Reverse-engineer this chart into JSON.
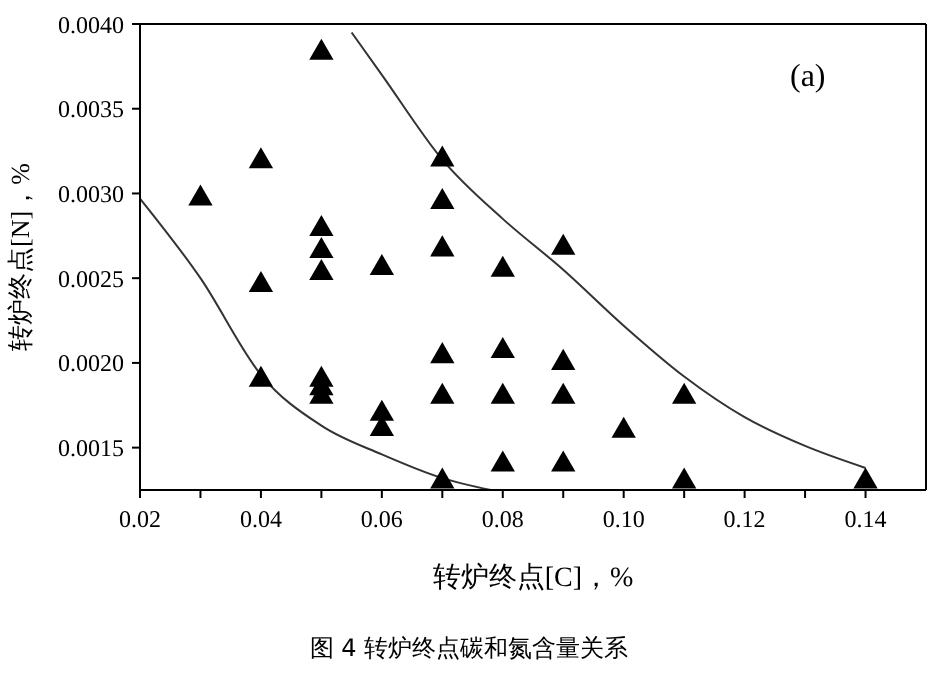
{
  "chart_data": {
    "type": "scatter",
    "xlabel": "转炉终点[C]，%",
    "ylabel": "转炉终点[N]，%",
    "annotations": [
      "(a)",
      "图 4 转炉终点碳和氮含量关系"
    ],
    "xlim": [
      0.02,
      0.15
    ],
    "ylim": [
      0.00125,
      0.004
    ],
    "xticks": [
      0.02,
      {
        "value": 0.03,
        "label": null
      },
      0.04,
      {
        "value": 0.05,
        "label": null
      },
      0.06,
      {
        "value": 0.07,
        "label": null
      },
      0.08,
      {
        "value": 0.09,
        "label": null
      },
      {
        "value": 0.1,
        "label": "0.10"
      },
      {
        "value": 0.11,
        "label": null
      },
      0.12,
      {
        "value": 0.13,
        "label": null
      },
      0.14
    ],
    "yticks": [
      0.0015,
      {
        "value": 0.002,
        "label": "0.0020"
      },
      0.0025,
      {
        "value": 0.003,
        "label": "0.0030"
      },
      0.0035,
      {
        "value": 0.004,
        "label": "0.0040"
      }
    ],
    "grid": false,
    "legend": false,
    "marker": "triangle",
    "series": [
      {
        "color": "#000000",
        "x": [
          0.03,
          0.04,
          0.04,
          0.04,
          0.05,
          0.05,
          0.05,
          0.05,
          0.05,
          0.05,
          0.05,
          0.06,
          0.06,
          0.06,
          0.07,
          0.07,
          0.07,
          0.07,
          0.07,
          0.07,
          0.08,
          0.08,
          0.08,
          0.08,
          0.09,
          0.09,
          0.09,
          0.09,
          0.1,
          0.11,
          0.11,
          0.14
        ],
        "values": [
          0.00297,
          0.00319,
          0.00246,
          0.0019,
          0.00383,
          0.00279,
          0.00266,
          0.00253,
          0.0019,
          0.00185,
          0.0018,
          0.00256,
          0.0017,
          0.00161,
          0.0032,
          0.00295,
          0.00267,
          0.00204,
          0.0018,
          0.0013,
          0.00255,
          0.00207,
          0.0018,
          0.0014,
          0.00268,
          0.002,
          0.0018,
          0.0014,
          0.0016,
          0.0018,
          0.0013,
          0.0013
        ]
      },
      {
        "type": "line",
        "color": "#333333",
        "marker": "none",
        "line_style": "solid",
        "x": [
          0.055,
          0.06,
          0.07,
          0.08,
          0.09,
          0.1,
          0.11,
          0.12,
          0.13,
          0.14
        ],
        "values": [
          0.00395,
          0.0037,
          0.0032,
          0.00285,
          0.00255,
          0.00222,
          0.00192,
          0.00168,
          0.00151,
          0.00138
        ]
      },
      {
        "type": "line",
        "color": "#333333",
        "marker": "none",
        "line_style": "solid",
        "x": [
          0.02,
          0.03,
          0.04,
          0.05,
          0.06,
          0.07,
          0.078
        ],
        "values": [
          0.00297,
          0.0025,
          0.00193,
          0.00163,
          0.00146,
          0.00132,
          0.00125
        ]
      }
    ]
  }
}
